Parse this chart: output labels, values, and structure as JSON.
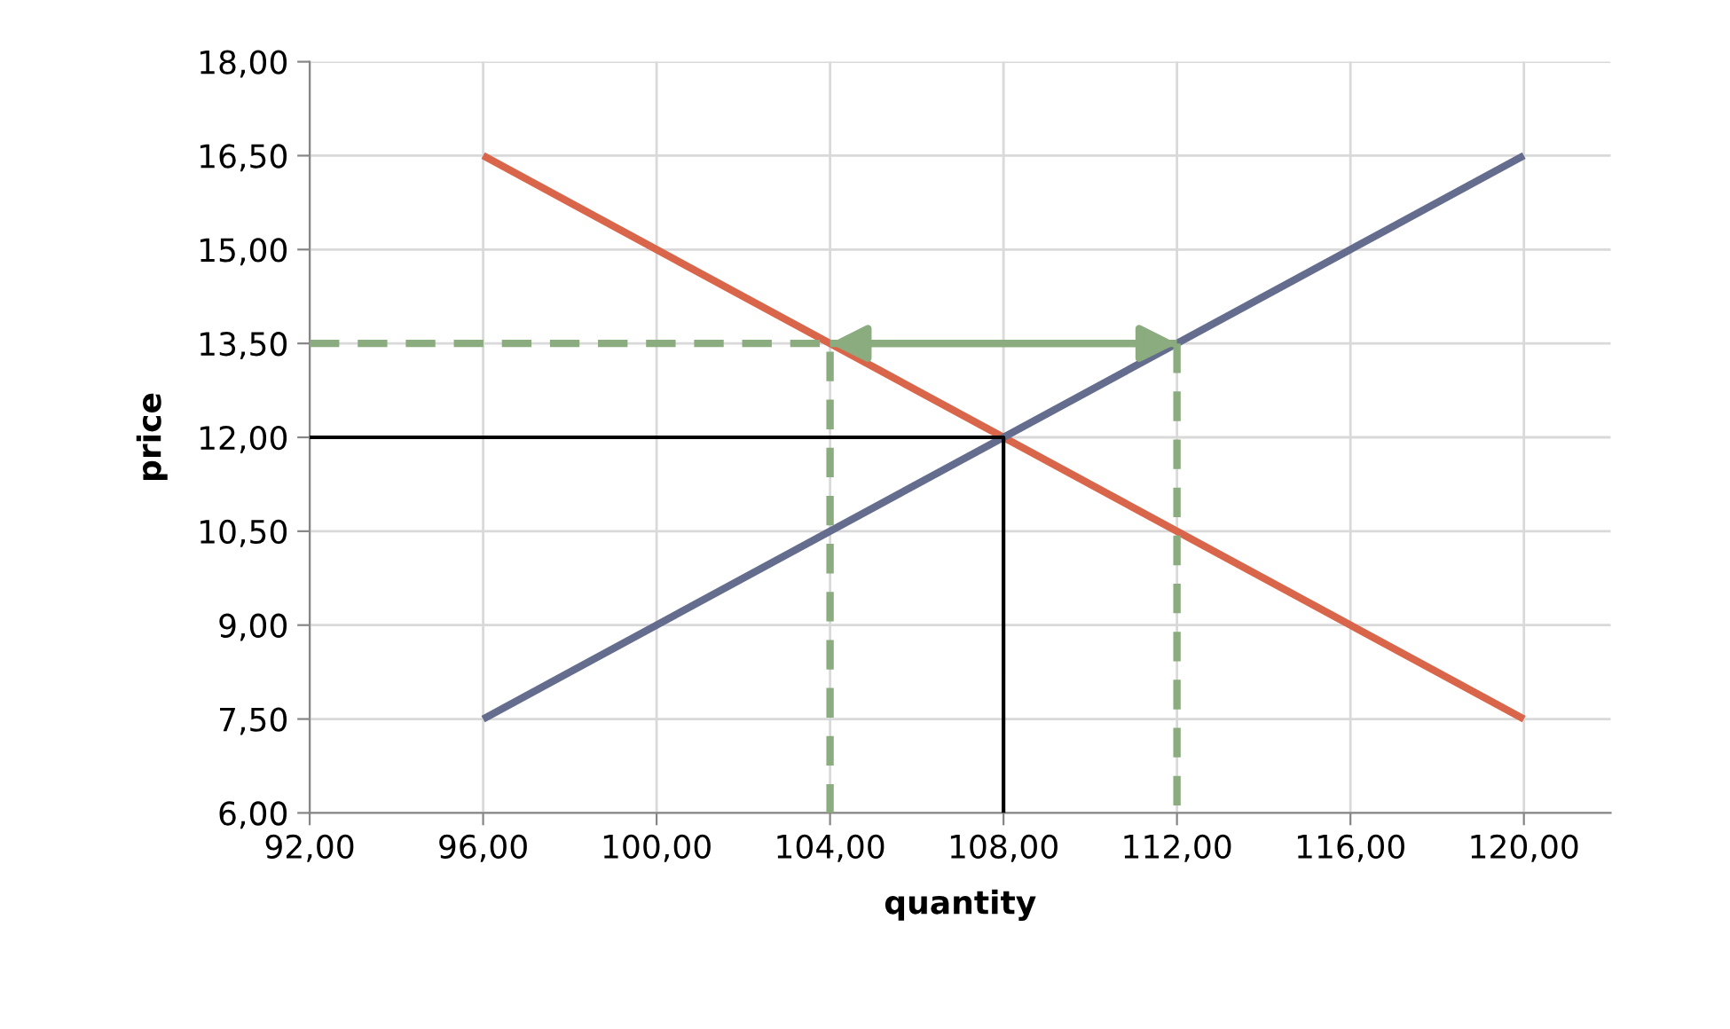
{
  "chart_data": {
    "type": "line",
    "xlabel": "quantity",
    "ylabel": "price",
    "xlim": [
      92,
      122
    ],
    "ylim": [
      6,
      18
    ],
    "xticks": [
      {
        "value": 92,
        "label": "92,00"
      },
      {
        "value": 96,
        "label": "96,00"
      },
      {
        "value": 100,
        "label": "100,00"
      },
      {
        "value": 104,
        "label": "104,00"
      },
      {
        "value": 108,
        "label": "108,00"
      },
      {
        "value": 112,
        "label": "112,00"
      },
      {
        "value": 116,
        "label": "116,00"
      },
      {
        "value": 120,
        "label": "120,00"
      }
    ],
    "yticks": [
      {
        "value": 6,
        "label": "6,00"
      },
      {
        "value": 7.5,
        "label": "7,50"
      },
      {
        "value": 9,
        "label": "9,00"
      },
      {
        "value": 10.5,
        "label": "10,50"
      },
      {
        "value": 12,
        "label": "12,00"
      },
      {
        "value": 13.5,
        "label": "13,50"
      },
      {
        "value": 15,
        "label": "15,00"
      },
      {
        "value": 16.5,
        "label": "16,50"
      },
      {
        "value": 18,
        "label": "18,00"
      }
    ],
    "grid": true,
    "legend": false,
    "series": [
      {
        "color": "#d9664a",
        "x": [
          96,
          120
        ],
        "values": [
          16.5,
          7.5
        ]
      },
      {
        "color": "#656d8f",
        "x": [
          96,
          120
        ],
        "values": [
          7.5,
          16.5
        ]
      },
      {
        "color": "#000000",
        "x": [
          92,
          108,
          108
        ],
        "values": [
          12,
          12,
          6
        ]
      },
      {
        "color": "#8aac7e",
        "line_style": "dashed",
        "x": [
          92,
          104,
          104
        ],
        "values": [
          13.5,
          13.5,
          6
        ]
      },
      {
        "color": "#8aac7e",
        "line_style": "dashed",
        "x": [
          112,
          112
        ],
        "values": [
          13.5,
          6
        ]
      },
      {
        "color": "#8aac7e",
        "x": [
          104,
          112
        ],
        "values": [
          13.5,
          13.5
        ]
      }
    ]
  }
}
